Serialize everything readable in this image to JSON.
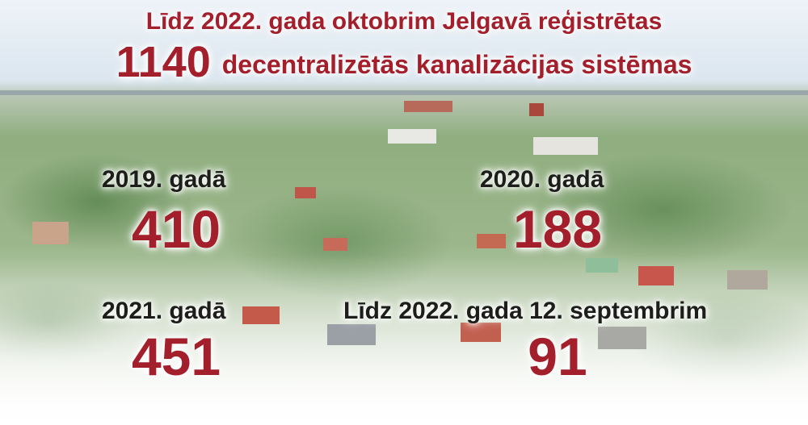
{
  "header": {
    "line1": "Līdz 2022. gada oktobrim Jelgavā reģistrētas",
    "count": 1140,
    "line2": "decentralizētās kanalizācijas sistēmas"
  },
  "stats": [
    {
      "label": "2019. gadā",
      "value": 410
    },
    {
      "label": "2020. gadā",
      "value": 188
    },
    {
      "label": "2021. gadā",
      "value": 451
    },
    {
      "label": "Līdz 2022. gada 12. septembrim",
      "value": 91
    }
  ]
}
